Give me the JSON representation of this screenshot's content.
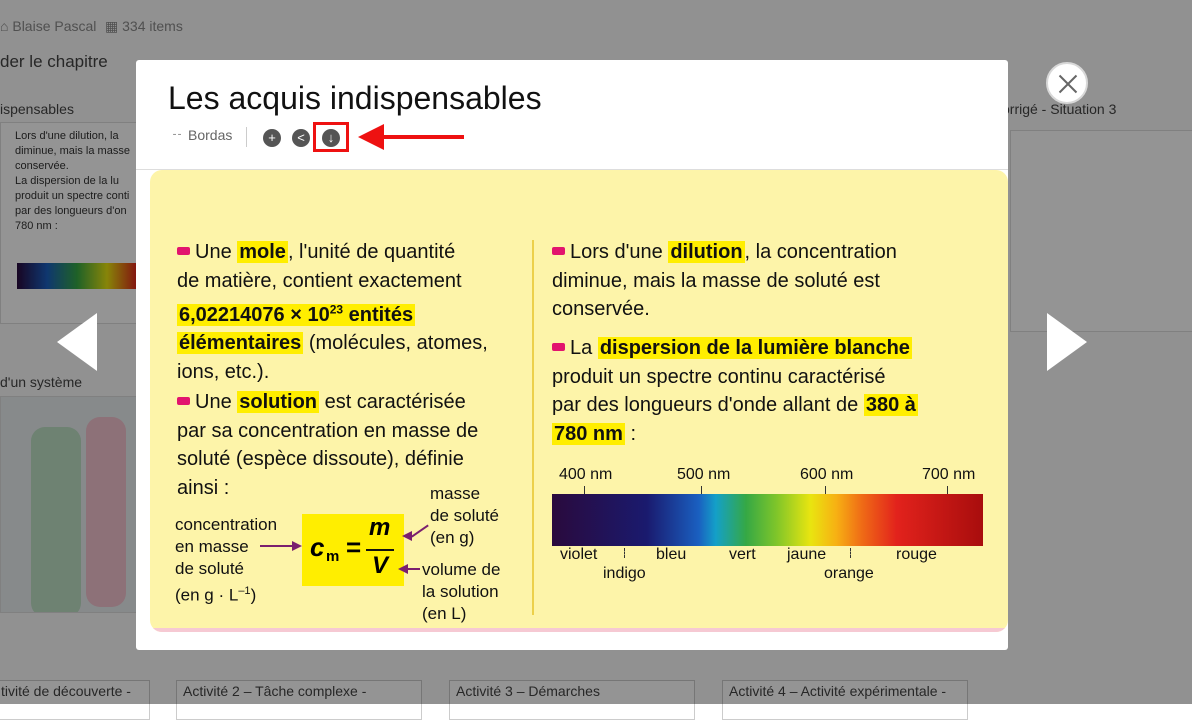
{
  "background": {
    "author": "Blaise Pascal",
    "item_count": "334 items",
    "chapter_link": "der le chapitre",
    "card_titles": {
      "acquis": "ispensables",
      "corrige": "orrigé - Situation 3",
      "systeme": "d'un système"
    },
    "thumb_lines": [
      "Lors d'une dilution, la",
      "diminue, mais la masse",
      "conservée.",
      "La dispersion de la lu",
      "produit un spectre conti",
      "par des longueurs d'on",
      "780 nm :"
    ],
    "bottom_cards": [
      "tivité de découverte -",
      "Activité 2 – Tâche complexe -",
      "Activité 3 – Démarches",
      "Activité 4 – Activité expérimentale -"
    ]
  },
  "modal": {
    "title": "Les acquis indispensables",
    "publisher": "Bordas",
    "add_icon": "+",
    "share_icon": "<",
    "download_icon": "↓"
  },
  "document": {
    "left": {
      "mole_pre": "Une ",
      "mole_kw": "mole",
      "mole_rest1": ", l'unité de quantité",
      "mole_line2": "de matière, contient exactement",
      "avogadro_hl": "6,02214076 × 10",
      "avogadro_exp": "23",
      "avogadro_hl2": " entités",
      "avogadro_hl3": "élémentaires",
      "mole_rest2": " (molécules, atomes,",
      "mole_line5": "ions, etc.).",
      "sol_pre": "Une ",
      "sol_kw": "solution",
      "sol_rest": " est caractérisée",
      "sol_line2": "par sa concentration en masse de",
      "sol_line3": "soluté (espèce dissoute), définie",
      "sol_line4": "ainsi :",
      "lbl_concentration_1": "concentration",
      "lbl_concentration_2": "en masse",
      "lbl_concentration_3": "de soluté",
      "lbl_concentration_4": "(en g · L",
      "lbl_concentration_exp": "–1",
      "lbl_concentration_5": ")",
      "formula_c": "c",
      "formula_sub": "m",
      "formula_eq": "=",
      "formula_num": "m",
      "formula_den": "V",
      "lbl_masse_1": "masse",
      "lbl_masse_2": "de soluté",
      "lbl_masse_3": "(en g)",
      "lbl_volume_1": "volume de",
      "lbl_volume_2": "la solution",
      "lbl_volume_3": "(en L)"
    },
    "right": {
      "dil_pre": "Lors d'une ",
      "dil_kw": "dilution",
      "dil_rest": ", la concentration",
      "dil_line2": "diminue, mais la masse de soluté est",
      "dil_line3": "conservée.",
      "disp_pre": "La ",
      "disp_kw": "dispersion de la lumière blanche",
      "disp_line2": "produit un spectre continu caractérisé",
      "disp_line3_pre": "par des longueurs d'onde allant de ",
      "disp_hl1": "380 à",
      "disp_hl2": "780 nm",
      "disp_line4_rest": " :"
    },
    "spectrum": {
      "ticks": [
        "400 nm",
        "500 nm",
        "600 nm",
        "700 nm"
      ],
      "colors_top": [
        "violet",
        "bleu",
        "vert",
        "jaune",
        "rouge"
      ],
      "colors_bottom": [
        "indigo",
        "orange"
      ]
    }
  }
}
